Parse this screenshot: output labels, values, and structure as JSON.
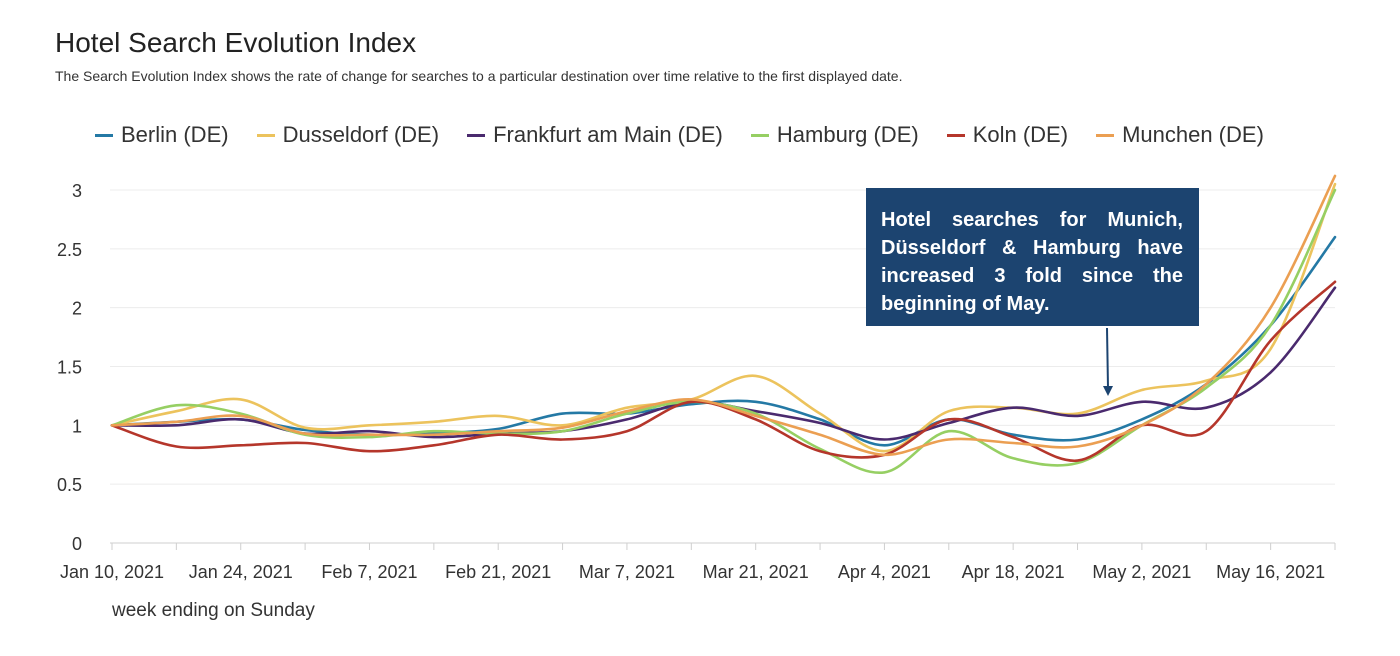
{
  "title": "Hotel Search Evolution Index",
  "subtitle": "The Search Evolution Index shows the rate of change for searches to a particular destination over time relative to the first displayed date.",
  "annotation": "Hotel searches for Munich, Düsseldorf & Hamburg have increased 3 fold since the beginning of May.",
  "chart_data": {
    "type": "line",
    "title": "Hotel Search Evolution Index",
    "xlabel": "week ending on Sunday",
    "ylabel": "",
    "ylim": [
      0,
      3
    ],
    "yticks": [
      "0",
      "0.5",
      "1",
      "1.5",
      "2",
      "2.5",
      "3"
    ],
    "grid": true,
    "legend_position": "top",
    "x_tick_labels": [
      "Jan 10, 2021",
      "Jan 24, 2021",
      "Feb 7, 2021",
      "Feb 21, 2021",
      "Mar 7, 2021",
      "Mar 21, 2021",
      "Apr 4, 2021",
      "Apr 18, 2021",
      "May 2, 2021",
      "May 16, 2021"
    ],
    "x": [
      "Jan 10, 2021",
      "Jan 17, 2021",
      "Jan 24, 2021",
      "Jan 31, 2021",
      "Feb 7, 2021",
      "Feb 14, 2021",
      "Feb 21, 2021",
      "Feb 28, 2021",
      "Mar 7, 2021",
      "Mar 14, 2021",
      "Mar 21, 2021",
      "Mar 28, 2021",
      "Apr 4, 2021",
      "Apr 11, 2021",
      "Apr 18, 2021",
      "Apr 25, 2021",
      "May 2, 2021",
      "May 9, 2021",
      "May 16, 2021",
      "May 23, 2021"
    ],
    "series": [
      {
        "name": "Berlin (DE)",
        "color": "#2479a5",
        "values": [
          1.0,
          1.03,
          1.05,
          0.96,
          0.92,
          0.93,
          0.97,
          1.1,
          1.1,
          1.18,
          1.2,
          1.05,
          0.83,
          1.05,
          0.92,
          0.88,
          1.05,
          1.35,
          1.85,
          2.6
        ]
      },
      {
        "name": "Dusseldorf (DE)",
        "color": "#ecc35d",
        "values": [
          1.0,
          1.12,
          1.22,
          0.98,
          1.0,
          1.03,
          1.08,
          1.0,
          1.15,
          1.22,
          1.42,
          1.1,
          0.78,
          1.12,
          1.15,
          1.1,
          1.3,
          1.38,
          1.65,
          3.05
        ]
      },
      {
        "name": "Frankfurt am Main (DE)",
        "color": "#4a2a6e",
        "values": [
          1.0,
          1.0,
          1.05,
          0.93,
          0.95,
          0.9,
          0.93,
          0.95,
          1.05,
          1.2,
          1.12,
          1.02,
          0.88,
          1.02,
          1.15,
          1.08,
          1.2,
          1.15,
          1.45,
          2.17
        ]
      },
      {
        "name": "Hamburg (DE)",
        "color": "#96cf63",
        "values": [
          1.0,
          1.17,
          1.1,
          0.92,
          0.9,
          0.95,
          0.93,
          0.95,
          1.1,
          1.2,
          1.1,
          0.8,
          0.6,
          0.95,
          0.72,
          0.68,
          1.0,
          1.32,
          1.85,
          3.0
        ]
      },
      {
        "name": "Koln (DE)",
        "color": "#b5362b",
        "values": [
          1.0,
          0.82,
          0.83,
          0.85,
          0.78,
          0.83,
          0.92,
          0.88,
          0.95,
          1.2,
          1.05,
          0.78,
          0.75,
          1.05,
          0.9,
          0.7,
          1.0,
          0.95,
          1.72,
          2.22
        ]
      },
      {
        "name": "Munchen (DE)",
        "color": "#eb9f52",
        "values": [
          1.0,
          1.03,
          1.08,
          0.93,
          0.92,
          0.92,
          0.95,
          0.98,
          1.12,
          1.22,
          1.08,
          0.92,
          0.75,
          0.88,
          0.85,
          0.82,
          1.0,
          1.35,
          2.0,
          3.12
        ]
      }
    ]
  }
}
